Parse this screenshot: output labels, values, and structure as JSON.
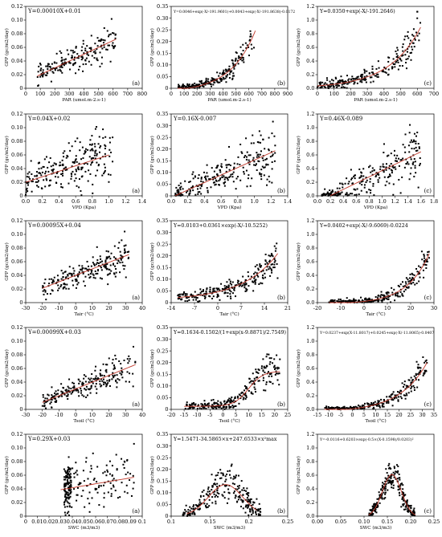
{
  "chart_data": [
    {
      "id": "r1c1",
      "type": "scatter",
      "equation": "Y=0.00010X+0.01",
      "panel_label": "(a)",
      "xlabel": "PAR (umol.m-2.s-1)",
      "ylabel": "GPP (gc/m2/day)",
      "xlim": [
        0,
        800
      ],
      "ylim": [
        0,
        0.12
      ],
      "xticks": [
        0,
        100,
        200,
        300,
        400,
        500,
        600,
        700,
        800
      ],
      "yticks": [
        0,
        0.02,
        0.04,
        0.06,
        0.08,
        0.1,
        0.12
      ],
      "xtick_labels": [
        "0",
        "100",
        "200",
        "300",
        "400",
        "500",
        "600",
        "700",
        "800"
      ],
      "ytick_labels": [
        "0",
        "0.02",
        "0.04",
        "0.06",
        "0.08",
        "0.10",
        "0.12"
      ],
      "fit": {
        "kind": "linear",
        "a": 0.0001,
        "b": 0.01,
        "x_range": [
          80,
          620
        ]
      },
      "cloud": {
        "x_min": 80,
        "x_max": 620,
        "n": 190,
        "noise": 0.013,
        "seed": 11
      }
    },
    {
      "id": "r1c2",
      "type": "scatter",
      "equation": "Y=0.0046+exp(-X/-191.9601)+0.0043+exp(-X/-191.8638)-0.0172",
      "panel_label": "(b)",
      "xlabel": "PAR (umol.m-2.s-1)",
      "ylabel": "GPP (gc/m2/day)",
      "xlim": [
        0,
        900
      ],
      "ylim": [
        0,
        0.35
      ],
      "xticks": [
        0,
        100,
        200,
        300,
        400,
        500,
        600,
        700,
        800,
        900
      ],
      "yticks": [
        0,
        0.05,
        0.1,
        0.15,
        0.2,
        0.25,
        0.3,
        0.35
      ],
      "xtick_labels": [
        "0",
        "100",
        "200",
        "300",
        "400",
        "500",
        "600",
        "700",
        "800",
        "900"
      ],
      "ytick_labels": [
        "0",
        "0.05",
        "0.10",
        "0.15",
        "0.20",
        "0.25",
        "0.30",
        "0.35"
      ],
      "fit": {
        "kind": "exp",
        "a": 0.0089,
        "k": 191.9,
        "c": -0.0172,
        "x_range": [
          50,
          650
        ]
      },
      "cloud": {
        "x_min": 50,
        "x_max": 640,
        "n": 220,
        "noise": 0.035,
        "seed": 23
      }
    },
    {
      "id": "r1c3",
      "type": "scatter",
      "equation": "Y=0.0350+exp(-X/-191.2646)",
      "panel_label": "(c)",
      "xlabel": "PAR (umol.m-2.s-1)",
      "ylabel": "GPP (gc/m2/day)",
      "xlim": [
        0,
        700
      ],
      "ylim": [
        0,
        1.2
      ],
      "xticks": [
        0,
        100,
        200,
        300,
        400,
        500,
        600,
        700
      ],
      "yticks": [
        0,
        0.2,
        0.4,
        0.6,
        0.8,
        1.0,
        1.2
      ],
      "xtick_labels": [
        "0",
        "100",
        "200",
        "300",
        "400",
        "500",
        "600",
        "700"
      ],
      "ytick_labels": [
        "0.0",
        "0.2",
        "0.4",
        "0.6",
        "0.8",
        "1.0",
        "1.2"
      ],
      "fit": {
        "kind": "exp",
        "a": 0.035,
        "k": 191.26,
        "c": 0,
        "x_range": [
          0,
          620
        ]
      },
      "cloud": {
        "x_min": 0,
        "x_max": 620,
        "n": 230,
        "noise": 0.12,
        "seed": 37
      }
    },
    {
      "id": "r2c1",
      "type": "scatter",
      "equation": "Y=0.04X+0.02",
      "panel_label": "(a)",
      "xlabel": "VPD (Kpa)",
      "ylabel": "GPP (gc/m2/day)",
      "xlim": [
        0,
        1.4
      ],
      "ylim": [
        0,
        0.12
      ],
      "xticks": [
        0,
        0.2,
        0.4,
        0.6,
        0.8,
        1.0,
        1.2,
        1.4
      ],
      "yticks": [
        0,
        0.02,
        0.04,
        0.06,
        0.08,
        0.1,
        0.12
      ],
      "xtick_labels": [
        "0.0",
        "0.2",
        "0.4",
        "0.6",
        "0.8",
        "1.0",
        "1.2",
        "1.4"
      ],
      "ytick_labels": [
        "0",
        "0.02",
        "0.04",
        "0.06",
        "0.08",
        "0.10",
        "0.12"
      ],
      "fit": {
        "kind": "linear",
        "a": 0.04,
        "b": 0.02,
        "x_range": [
          0,
          1.0
        ]
      },
      "cloud": {
        "x_min": 0,
        "x_max": 1.05,
        "n": 230,
        "noise": 0.022,
        "seed": 41
      }
    },
    {
      "id": "r2c2",
      "type": "scatter",
      "equation": "Y=0.16X-0.007",
      "panel_label": "(b)",
      "xlabel": "VPD (Kpa)",
      "ylabel": "GPP (gc/m2/day)",
      "xlim": [
        0,
        1.4
      ],
      "ylim": [
        0,
        0.35
      ],
      "xticks": [
        0,
        0.2,
        0.4,
        0.6,
        0.8,
        1.0,
        1.2,
        1.4
      ],
      "yticks": [
        0,
        0.05,
        0.1,
        0.15,
        0.2,
        0.25,
        0.3,
        0.35
      ],
      "xtick_labels": [
        "0.0",
        "0.2",
        "0.4",
        "0.6",
        "0.8",
        "1.0",
        "1.2",
        "1.4"
      ],
      "ytick_labels": [
        "0",
        "0.05",
        "0.10",
        "0.15",
        "0.20",
        "0.25",
        "0.30",
        "0.35"
      ],
      "fit": {
        "kind": "linear",
        "a": 0.16,
        "b": -0.007,
        "x_range": [
          0.05,
          1.25
        ]
      },
      "cloud": {
        "x_min": 0.05,
        "x_max": 1.25,
        "n": 240,
        "noise": 0.06,
        "seed": 53
      }
    },
    {
      "id": "r2c3",
      "type": "scatter",
      "equation": "Y=0.46X-0.089",
      "panel_label": "(c)",
      "xlabel": "VPD (Kpa)",
      "ylabel": "GPP (gc/m2/day)",
      "xlim": [
        0,
        1.8
      ],
      "ylim": [
        0,
        1.2
      ],
      "xticks": [
        0,
        0.2,
        0.4,
        0.6,
        0.8,
        1.0,
        1.2,
        1.4,
        1.6,
        1.8
      ],
      "yticks": [
        0,
        0.2,
        0.4,
        0.6,
        0.8,
        1.0,
        1.2
      ],
      "xtick_labels": [
        "0.0",
        "0.2",
        "0.4",
        "0.6",
        "0.8",
        "1.0",
        "1.2",
        "1.4",
        "1.6",
        "1.8"
      ],
      "ytick_labels": [
        "0.0",
        "0.2",
        "0.4",
        "0.6",
        "0.8",
        "1.0",
        "1.2"
      ],
      "fit": {
        "kind": "linear",
        "a": 0.46,
        "b": -0.089,
        "x_range": [
          0.2,
          1.6
        ]
      },
      "cloud": {
        "x_min": 0.05,
        "x_max": 1.6,
        "n": 240,
        "noise": 0.2,
        "seed": 67
      }
    },
    {
      "id": "r3c1",
      "type": "scatter",
      "equation": "Y=0.00095X+0.04",
      "panel_label": "(a)",
      "xlabel": "Tair (°C)",
      "ylabel": "GPP (gc/m2/day)",
      "xlim": [
        -30,
        40
      ],
      "ylim": [
        0,
        0.12
      ],
      "xticks": [
        -30,
        -20,
        -10,
        0,
        10,
        20,
        30,
        40
      ],
      "yticks": [
        0,
        0.02,
        0.04,
        0.06,
        0.08,
        0.1,
        0.12
      ],
      "xtick_labels": [
        "-30",
        "-20",
        "-10",
        "0",
        "10",
        "20",
        "30",
        "40"
      ],
      "ytick_labels": [
        "0",
        "0.02",
        "0.04",
        "0.06",
        "0.08",
        "0.10",
        "0.12"
      ],
      "fit": {
        "kind": "linear",
        "a": 0.00095,
        "b": 0.04,
        "x_range": [
          -20,
          32
        ]
      },
      "cloud": {
        "x_min": -20,
        "x_max": 32,
        "n": 220,
        "noise": 0.012,
        "seed": 71
      }
    },
    {
      "id": "r3c2",
      "type": "scatter",
      "equation": "Y=0.0103+0.0361×exp(-X/-10.5252)",
      "panel_label": "(b)",
      "xlabel": "Tair (°C)",
      "ylabel": "GPP (gc/m2/day)",
      "xlim": [
        -14,
        21
      ],
      "ylim": [
        0,
        0.35
      ],
      "xticks": [
        -14,
        -7,
        0,
        7,
        14,
        21
      ],
      "yticks": [
        0,
        0.05,
        0.1,
        0.15,
        0.2,
        0.25,
        0.3,
        0.35
      ],
      "xtick_labels": [
        "-14",
        "-7",
        "0",
        "7",
        "14",
        "21"
      ],
      "ytick_labels": [
        "0",
        "0.05",
        "0.10",
        "0.15",
        "0.20",
        "0.25",
        "0.30",
        "0.35"
      ],
      "fit": {
        "kind": "exp",
        "a": 0.0361,
        "k": 10.5252,
        "c": 0.0103,
        "x_range": [
          -12,
          18
        ]
      },
      "cloud": {
        "x_min": -12,
        "x_max": 18,
        "n": 240,
        "noise": 0.035,
        "seed": 83
      }
    },
    {
      "id": "r3c3",
      "type": "scatter",
      "equation": "Y=0.0402+exp(-X/-9.6069)-0.0224",
      "panel_label": "(c)",
      "xlabel": "Tair (°C)",
      "ylabel": "GPP (gc/m2/day)",
      "xlim": [
        -20,
        30
      ],
      "ylim": [
        0,
        1.2
      ],
      "xticks": [
        -20,
        -10,
        0,
        10,
        20,
        30
      ],
      "yticks": [
        0,
        0.2,
        0.4,
        0.6,
        0.8,
        1.0,
        1.2
      ],
      "xtick_labels": [
        "-20",
        "-10",
        "0",
        "10",
        "20",
        "30"
      ],
      "ytick_labels": [
        "0.0",
        "0.2",
        "0.4",
        "0.6",
        "0.8",
        "1.0",
        "1.2"
      ],
      "fit": {
        "kind": "exp",
        "a": 0.0402,
        "k": 9.6069,
        "c": -0.0224,
        "x_range": [
          -15,
          28
        ]
      },
      "cloud": {
        "x_min": -15,
        "x_max": 28,
        "n": 240,
        "noise": 0.1,
        "seed": 97
      }
    },
    {
      "id": "r4c1",
      "type": "scatter",
      "equation": "Y=0.00099X+0.03",
      "panel_label": "(a)",
      "xlabel": "Tsoil (°C)",
      "ylabel": "GPP (gc/m2/day)",
      "xlim": [
        -30,
        40
      ],
      "ylim": [
        0,
        0.12
      ],
      "xticks": [
        -30,
        -20,
        -10,
        0,
        10,
        20,
        30,
        40
      ],
      "yticks": [
        0,
        0.02,
        0.04,
        0.06,
        0.08,
        0.1,
        0.12
      ],
      "xtick_labels": [
        "-30",
        "-20",
        "-10",
        "0",
        "10",
        "20",
        "30",
        "40"
      ],
      "ytick_labels": [
        "0",
        "0.02",
        "0.04",
        "0.06",
        "0.08",
        "0.10",
        "0.12"
      ],
      "fit": {
        "kind": "linear",
        "a": 0.00099,
        "b": 0.03,
        "x_range": [
          -20,
          36
        ]
      },
      "cloud": {
        "x_min": -20,
        "x_max": 36,
        "n": 230,
        "noise": 0.013,
        "seed": 101
      }
    },
    {
      "id": "r4c2",
      "type": "scatter",
      "equation": "Y=0.1634-0.1502/(1+exp(x-9.8871)/2.7549)",
      "panel_label": "(b)",
      "xlabel": "Tsoil (°C)",
      "ylabel": "GPP (gc/m2/day)",
      "xlim": [
        -20,
        25
      ],
      "ylim": [
        0,
        0.35
      ],
      "xticks": [
        -20,
        -15,
        -10,
        -5,
        0,
        5,
        10,
        15,
        20,
        25
      ],
      "yticks": [
        0,
        0.05,
        0.1,
        0.15,
        0.2,
        0.25,
        0.3,
        0.35
      ],
      "xtick_labels": [
        "-20",
        "-15",
        "-10",
        "-5",
        "0",
        "5",
        "10",
        "15",
        "20",
        "25"
      ],
      "ytick_labels": [
        "0",
        "0.05",
        "0.10",
        "0.15",
        "0.20",
        "0.25",
        "0.30",
        "0.35"
      ],
      "fit": {
        "kind": "sigmoid",
        "top": 0.1634,
        "amp": 0.1502,
        "x0": 9.8871,
        "w": 2.7549,
        "x_range": [
          -15,
          22
        ]
      },
      "cloud": {
        "x_min": -15,
        "x_max": 22,
        "n": 240,
        "noise": 0.035,
        "seed": 113
      }
    },
    {
      "id": "r4c3",
      "type": "scatter",
      "equation": "Y=0.0237+exp(X-11.8017)+0.0245+exp(-X/-11.8065)-0.0407",
      "panel_label": "(c)",
      "xlabel": "Tsoil (°C)",
      "ylabel": "GPP (gc/m2/day)",
      "xlim": [
        -15,
        35
      ],
      "ylim": [
        0,
        1.2
      ],
      "xticks": [
        -15,
        -10,
        -5,
        0,
        5,
        10,
        15,
        20,
        25,
        30,
        35
      ],
      "yticks": [
        0,
        0.2,
        0.4,
        0.6,
        0.8,
        1.0,
        1.2
      ],
      "xtick_labels": [
        "-15",
        "-10",
        "-5",
        "0",
        "5",
        "10",
        "15",
        "20",
        "25",
        "30",
        "35"
      ],
      "ytick_labels": [
        "0.0",
        "0.2",
        "0.4",
        "0.6",
        "0.8",
        "1.0",
        "1.2"
      ],
      "fit": {
        "kind": "exp",
        "a": 0.0482,
        "k": 11.8,
        "c": -0.0407,
        "x_range": [
          -12,
          32
        ]
      },
      "cloud": {
        "x_min": -12,
        "x_max": 32,
        "n": 240,
        "noise": 0.1,
        "seed": 127
      }
    },
    {
      "id": "r5c1",
      "type": "scatter",
      "equation": "Y=0.29X+0.03",
      "panel_label": "(a)",
      "xlabel": "SWC (m3/m3)",
      "ylabel": "GPP (gc/m2/day)",
      "xlim": [
        0,
        0.1
      ],
      "ylim": [
        0,
        0.12
      ],
      "xticks": [
        0,
        0.01,
        0.02,
        0.03,
        0.04,
        0.05,
        0.06,
        0.07,
        0.08,
        0.09,
        0.1
      ],
      "yticks": [
        0,
        0.02,
        0.04,
        0.06,
        0.08,
        0.1,
        0.12
      ],
      "xtick_labels": [
        "0",
        "0.01",
        "0.02",
        "0.03",
        "0.04",
        "0.05",
        "0.06",
        "0.07",
        "0.08",
        "0.09",
        "0.1"
      ],
      "ytick_labels": [
        "0",
        "0.02",
        "0.04",
        "0.06",
        "0.08",
        "0.10",
        "0.12"
      ],
      "fit": {
        "kind": "linear",
        "a": 0.29,
        "b": 0.03,
        "x_range": [
          0.03,
          0.093
        ]
      },
      "cloud": {
        "x_min": 0.032,
        "x_max": 0.093,
        "n": 220,
        "noise": 0.022,
        "seed": 131,
        "cluster": 0.036
      }
    },
    {
      "id": "r5c2",
      "type": "scatter",
      "equation": "Y=1.5471-34.5865×x+247.6533×x²max",
      "panel_label": "(b)",
      "xlabel": "SWC (m3/m3)",
      "ylabel": "GPP (gc/m2/day)",
      "xlim": [
        0.1,
        0.25
      ],
      "ylim": [
        0,
        0.35
      ],
      "xticks": [
        0.1,
        0.15,
        0.2,
        0.25
      ],
      "yticks": [
        0,
        0.05,
        0.1,
        0.15,
        0.2,
        0.25,
        0.3,
        0.35
      ],
      "xtick_labels": [
        "0.1",
        "0.15",
        "0.2",
        "0.25"
      ],
      "ytick_labels": [
        "0",
        "0.05",
        "0.10",
        "0.15",
        "0.20",
        "0.25",
        "0.30",
        "0.35"
      ],
      "fit": {
        "kind": "bump",
        "peak": 0.135,
        "x0": 0.17,
        "w": 0.022,
        "x_range": [
          0.12,
          0.21
        ]
      },
      "cloud": {
        "x_min": 0.115,
        "x_max": 0.215,
        "n": 240,
        "noise": 0.05,
        "seed": 149
      }
    },
    {
      "id": "r5c3",
      "type": "scatter",
      "equation": "Y=-0.0116+0.6203×exp(-0.5×(X-0.1598)/0.0203)²",
      "panel_label": "(c)",
      "xlabel": "SWC (m3/m3)",
      "ylabel": "GPP (gc/m2/day)",
      "xlim": [
        0,
        0.25
      ],
      "ylim": [
        0,
        1.2
      ],
      "xticks": [
        0,
        0.05,
        0.1,
        0.15,
        0.2,
        0.25
      ],
      "yticks": [
        0,
        0.2,
        0.4,
        0.6,
        0.8,
        1.0,
        1.2
      ],
      "xtick_labels": [
        "0.00",
        "0.05",
        "0.10",
        "0.15",
        "0.20",
        "0.25"
      ],
      "ytick_labels": [
        "0.0",
        "0.2",
        "0.4",
        "0.6",
        "0.8",
        "1.0",
        "1.2"
      ],
      "fit": {
        "kind": "gauss",
        "base": -0.0116,
        "amp": 0.6203,
        "x0": 0.1598,
        "w": 0.0203,
        "x_range": [
          0.11,
          0.21
        ]
      },
      "cloud": {
        "x_min": 0.11,
        "x_max": 0.21,
        "n": 240,
        "noise": 0.12,
        "seed": 157
      }
    }
  ]
}
